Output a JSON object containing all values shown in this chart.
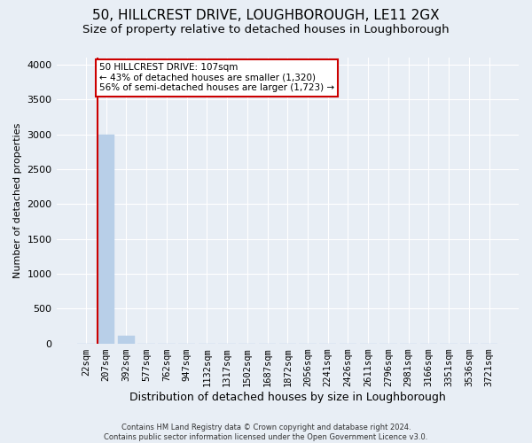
{
  "title": "50, HILLCREST DRIVE, LOUGHBOROUGH, LE11 2GX",
  "subtitle": "Size of property relative to detached houses in Loughborough",
  "xlabel": "Distribution of detached houses by size in Loughborough",
  "ylabel": "Number of detached properties",
  "footer_line1": "Contains HM Land Registry data © Crown copyright and database right 2024.",
  "footer_line2": "Contains public sector information licensed under the Open Government Licence v3.0.",
  "categories": [
    "22sqm",
    "207sqm",
    "392sqm",
    "577sqm",
    "762sqm",
    "947sqm",
    "1132sqm",
    "1317sqm",
    "1502sqm",
    "1687sqm",
    "1872sqm",
    "2056sqm",
    "2241sqm",
    "2426sqm",
    "2611sqm",
    "2796sqm",
    "2981sqm",
    "3166sqm",
    "3351sqm",
    "3536sqm",
    "3721sqm"
  ],
  "bar_values": [
    0,
    3000,
    115,
    0,
    0,
    0,
    0,
    0,
    0,
    0,
    0,
    0,
    0,
    0,
    0,
    0,
    0,
    0,
    0,
    0,
    0
  ],
  "bar_color": "#b8cfe8",
  "bar_edge_color": "#b8cfe8",
  "vline_color": "#cc0000",
  "annotation_text": "50 HILLCREST DRIVE: 107sqm\n← 43% of detached houses are smaller (1,320)\n56% of semi-detached houses are larger (1,723) →",
  "annotation_box_color": "#cc0000",
  "annotation_text_color": "#000000",
  "ylim": [
    0,
    4100
  ],
  "yticks": [
    0,
    500,
    1000,
    1500,
    2000,
    2500,
    3000,
    3500,
    4000
  ],
  "background_color": "#e8eef5",
  "grid_color": "#ffffff",
  "title_fontsize": 11,
  "subtitle_fontsize": 9.5,
  "xlabel_fontsize": 9,
  "ylabel_fontsize": 8,
  "tick_fontsize": 7.5,
  "annotation_fontsize": 7.5,
  "footer_fontsize": 6
}
